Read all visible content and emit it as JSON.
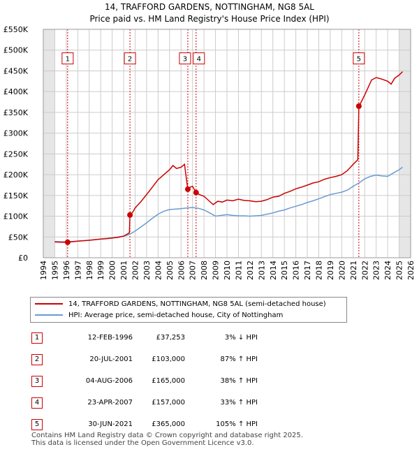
{
  "chart_data": {
    "type": "line",
    "title": "14, TRAFFORD GARDENS, NOTTINGHAM, NG8 5AL",
    "subtitle": "Price paid vs. HM Land Registry's House Price Index (HPI)",
    "y_ticks": [
      "£0",
      "£50K",
      "£100K",
      "£150K",
      "£200K",
      "£250K",
      "£300K",
      "£350K",
      "£400K",
      "£450K",
      "£500K",
      "£550K"
    ],
    "y_tick_values": [
      0,
      50000,
      100000,
      150000,
      200000,
      250000,
      300000,
      350000,
      400000,
      450000,
      500000,
      550000
    ],
    "ylim": [
      0,
      550000
    ],
    "xlim": [
      1994.0,
      2026.0
    ],
    "x_ticks": [
      "1994",
      "1995",
      "1996",
      "1997",
      "1998",
      "1999",
      "2000",
      "2001",
      "2002",
      "2003",
      "2004",
      "2005",
      "2006",
      "2007",
      "2008",
      "2009",
      "2010",
      "2011",
      "2012",
      "2013",
      "2014",
      "2015",
      "2016",
      "2017",
      "2018",
      "2019",
      "2020",
      "2021",
      "2022",
      "2023",
      "2024",
      "2025",
      "2026"
    ],
    "shaded_periods": [
      [
        1994.0,
        1995.0
      ],
      [
        2025.0,
        2026.0
      ]
    ],
    "series": [
      {
        "name": "14, TRAFFORD GARDENS, NOTTINGHAM, NG8 5AL (semi-detached house)",
        "color": "#cc0000",
        "x": [
          1995.0,
          1995.5,
          1996.12,
          1996.5,
          1997.0,
          1997.5,
          1998.0,
          1998.5,
          1999.0,
          1999.5,
          2000.0,
          2000.5,
          2001.0,
          2001.5,
          2001.55,
          2001.8,
          2002.0,
          2002.5,
          2003.0,
          2003.5,
          2004.0,
          2004.5,
          2005.0,
          2005.3,
          2005.6,
          2006.0,
          2006.3,
          2006.59,
          2006.8,
          2007.0,
          2007.31,
          2007.6,
          2008.0,
          2008.4,
          2008.8,
          2009.2,
          2009.6,
          2010.0,
          2010.5,
          2011.0,
          2011.5,
          2012.0,
          2012.5,
          2013.0,
          2013.5,
          2014.0,
          2014.5,
          2015.0,
          2015.5,
          2016.0,
          2016.5,
          2017.0,
          2017.5,
          2018.0,
          2018.5,
          2019.0,
          2019.5,
          2020.0,
          2020.5,
          2021.0,
          2021.4,
          2021.49,
          2021.6,
          2022.0,
          2022.3,
          2022.6,
          2023.0,
          2023.5,
          2024.0,
          2024.3,
          2024.6,
          2025.0,
          2025.3
        ],
        "values": [
          38000,
          37500,
          37253,
          38500,
          40000,
          41000,
          42000,
          43500,
          45000,
          46000,
          47500,
          49000,
          52000,
          60000,
          103000,
          110000,
          120000,
          135000,
          152000,
          170000,
          188000,
          200000,
          212000,
          222000,
          215000,
          218000,
          225000,
          165000,
          170000,
          172000,
          157000,
          152000,
          148000,
          138000,
          128000,
          136000,
          134000,
          139000,
          137000,
          141000,
          138000,
          137000,
          135000,
          136000,
          140000,
          146000,
          148000,
          155000,
          160000,
          166000,
          170000,
          175000,
          180000,
          183000,
          189000,
          193000,
          196000,
          200000,
          210000,
          225000,
          236000,
          365000,
          370000,
          392000,
          410000,
          428000,
          434000,
          430000,
          425000,
          418000,
          432000,
          440000,
          448000
        ]
      },
      {
        "name": "HPI: Average price, semi-detached house, City of Nottingham",
        "color": "#6a9bd0",
        "x": [
          1995.0,
          1995.5,
          1996.0,
          1996.5,
          1997.0,
          1997.5,
          1998.0,
          1998.5,
          1999.0,
          1999.5,
          2000.0,
          2000.5,
          2001.0,
          2001.5,
          2002.0,
          2002.5,
          2003.0,
          2003.5,
          2004.0,
          2004.5,
          2005.0,
          2005.5,
          2006.0,
          2006.5,
          2007.0,
          2007.5,
          2008.0,
          2008.5,
          2009.0,
          2009.5,
          2010.0,
          2010.5,
          2011.0,
          2011.5,
          2012.0,
          2012.5,
          2013.0,
          2013.5,
          2014.0,
          2014.5,
          2015.0,
          2015.5,
          2016.0,
          2016.5,
          2017.0,
          2017.5,
          2018.0,
          2018.5,
          2019.0,
          2019.5,
          2020.0,
          2020.5,
          2021.0,
          2021.5,
          2022.0,
          2022.5,
          2023.0,
          2023.5,
          2024.0,
          2024.5,
          2025.0,
          2025.3
        ],
        "values": [
          39000,
          38500,
          38500,
          39000,
          40000,
          41000,
          42000,
          43500,
          45000,
          46500,
          48000,
          50000,
          52000,
          56000,
          64000,
          74000,
          84000,
          95000,
          105000,
          112000,
          116000,
          117000,
          118000,
          120000,
          121000,
          119000,
          115000,
          108000,
          100000,
          102000,
          104000,
          102000,
          101000,
          101000,
          100000,
          101000,
          102000,
          105000,
          108000,
          112000,
          115000,
          120000,
          124000,
          128000,
          133000,
          137000,
          142000,
          147000,
          152000,
          155000,
          158000,
          163000,
          172000,
          180000,
          190000,
          196000,
          199000,
          197000,
          196000,
          204000,
          212000,
          218000
        ]
      }
    ],
    "sale_markers": [
      {
        "label": "1",
        "x": 1996.12,
        "value": 37253
      },
      {
        "label": "2",
        "x": 2001.55,
        "value": 103000
      },
      {
        "label": "3",
        "x": 2006.59,
        "value": 165000
      },
      {
        "label": "4",
        "x": 2007.31,
        "value": 157000
      },
      {
        "label": "5",
        "x": 2021.49,
        "value": 365000
      }
    ],
    "marker_label_value": 480000
  },
  "legend": {
    "property_label": "14, TRAFFORD GARDENS, NOTTINGHAM, NG8 5AL (semi-detached house)",
    "hpi_label": "HPI: Average price, semi-detached house, City of Nottingham"
  },
  "sales": [
    {
      "num": "1",
      "date": "12-FEB-1996",
      "price": "£37,253",
      "hpi": "3% ↓ HPI"
    },
    {
      "num": "2",
      "date": "20-JUL-2001",
      "price": "£103,000",
      "hpi": "87% ↑ HPI"
    },
    {
      "num": "3",
      "date": "04-AUG-2006",
      "price": "£165,000",
      "hpi": "38% ↑ HPI"
    },
    {
      "num": "4",
      "date": "23-APR-2007",
      "price": "£157,000",
      "hpi": "33% ↑ HPI"
    },
    {
      "num": "5",
      "date": "30-JUN-2021",
      "price": "£365,000",
      "hpi": "105% ↑ HPI"
    }
  ],
  "footer": {
    "line1": "Contains HM Land Registry data © Crown copyright and database right 2025.",
    "line2": "This data is licensed under the Open Government Licence v3.0."
  }
}
